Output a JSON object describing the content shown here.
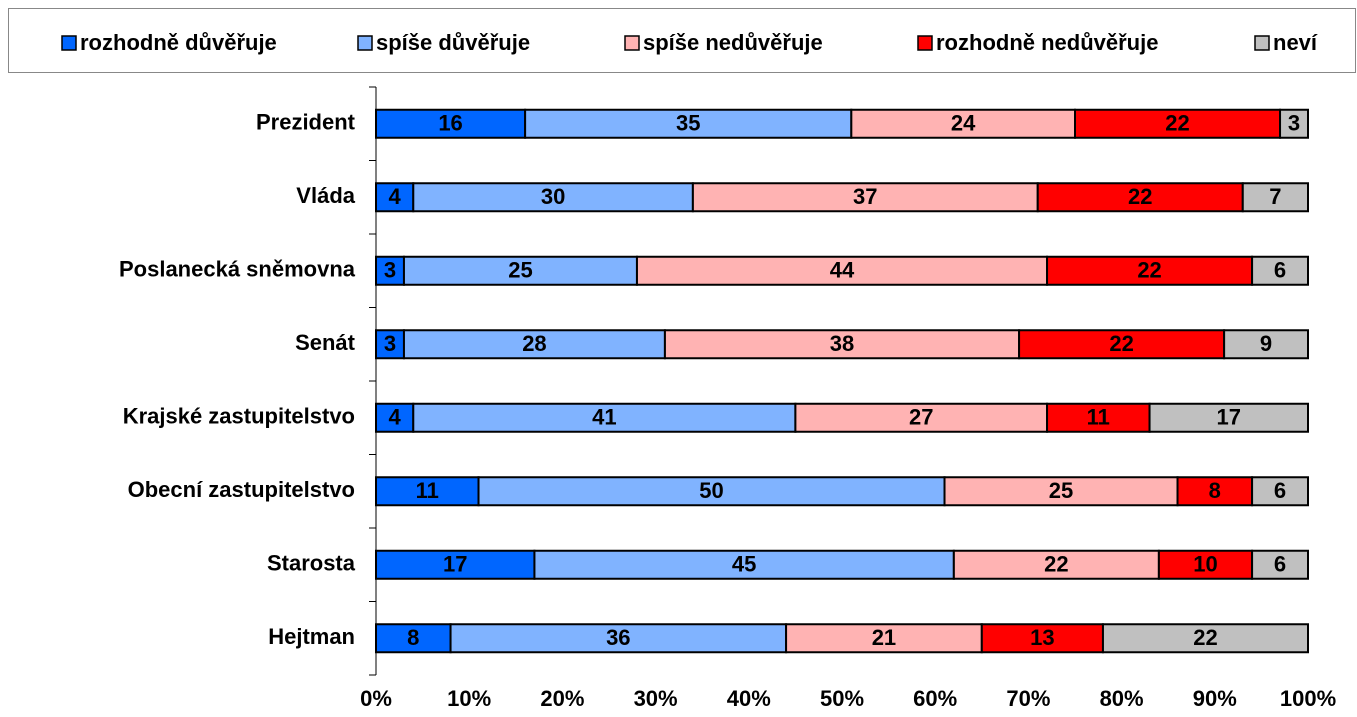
{
  "chart_data": {
    "type": "stacked-bar-horizontal",
    "categories": [
      "Prezident",
      "Vláda",
      "Poslanecká sněmovna",
      "Senát",
      "Krajské zastupitelstvo",
      "Obecní zastupitelstvo",
      "Starosta",
      "Hejtman"
    ],
    "series": [
      {
        "name": "rozhodně důvěřuje",
        "color": "#0066ff",
        "values": [
          16,
          4,
          3,
          3,
          4,
          11,
          17,
          8
        ]
      },
      {
        "name": "spíše důvěřuje",
        "color": "#80b3ff",
        "values": [
          35,
          30,
          25,
          28,
          41,
          50,
          45,
          36
        ]
      },
      {
        "name": "spíše nedůvěřuje",
        "color": "#ffb3b3",
        "values": [
          24,
          37,
          44,
          38,
          27,
          25,
          22,
          21
        ]
      },
      {
        "name": "rozhodně nedůvěřuje",
        "color": "#ff0000",
        "values": [
          22,
          22,
          22,
          22,
          11,
          8,
          10,
          13
        ]
      },
      {
        "name": "neví",
        "color": "#c0c0c0",
        "values": [
          3,
          7,
          6,
          9,
          17,
          6,
          6,
          22
        ]
      }
    ],
    "xlim": [
      0,
      100
    ],
    "xticks": [
      {
        "value": 0,
        "label": "0%"
      },
      {
        "value": 10,
        "label": "10%"
      },
      {
        "value": 20,
        "label": "20%"
      },
      {
        "value": 30,
        "label": "30%"
      },
      {
        "value": 40,
        "label": "40%"
      },
      {
        "value": 50,
        "label": "50%"
      },
      {
        "value": 60,
        "label": "60%"
      },
      {
        "value": 70,
        "label": "70%"
      },
      {
        "value": 80,
        "label": "80%"
      },
      {
        "value": 90,
        "label": "90%"
      },
      {
        "value": 100,
        "label": "100%"
      }
    ],
    "legend": "top",
    "grid": false
  }
}
